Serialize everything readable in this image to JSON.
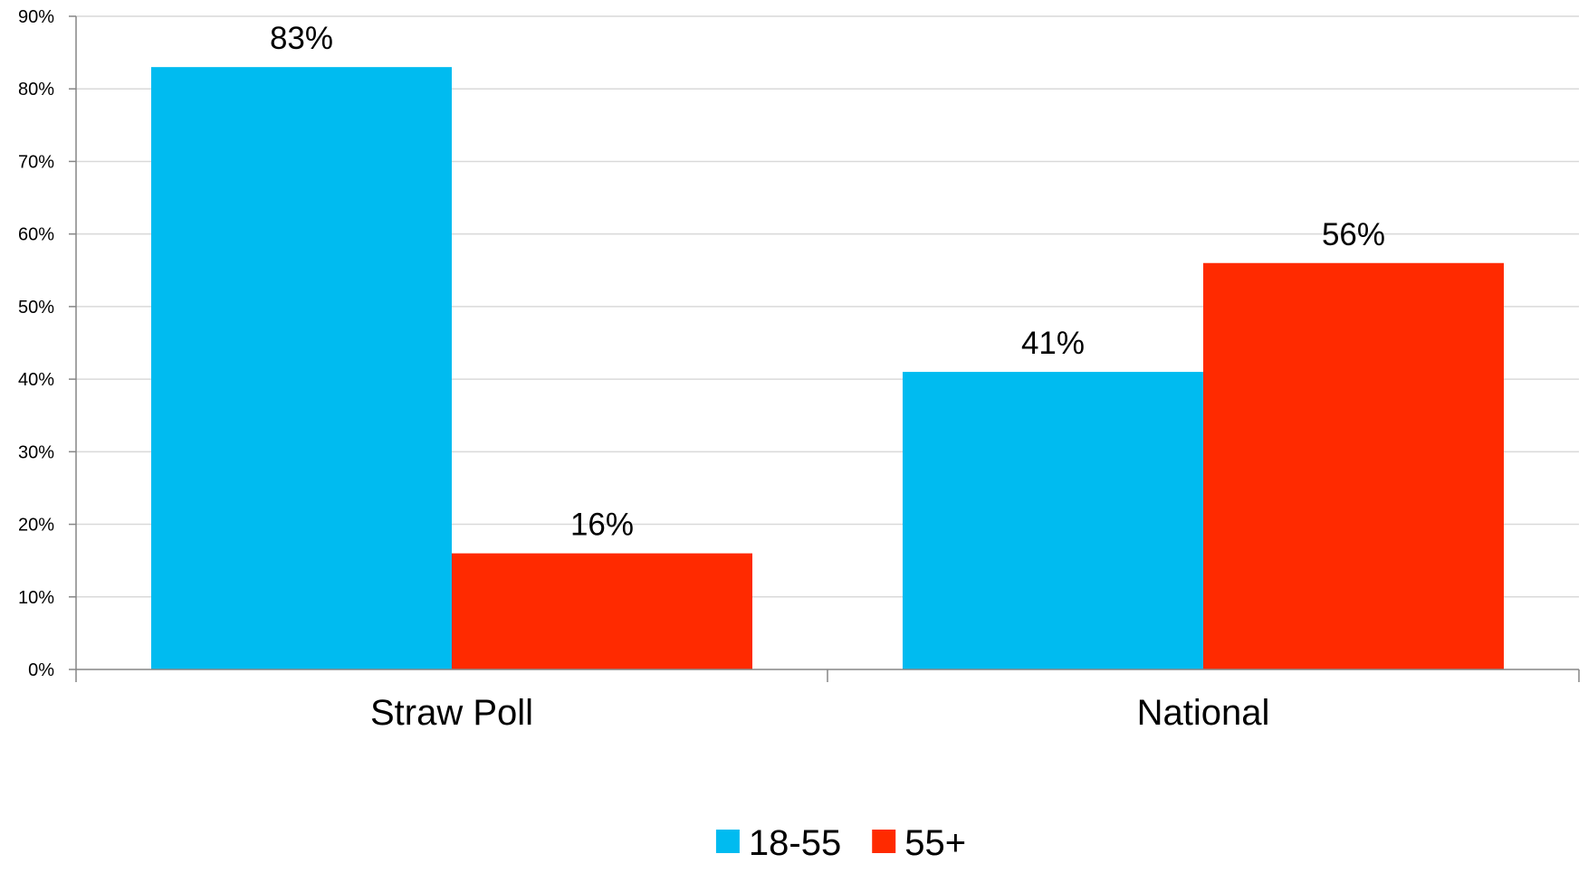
{
  "chart_data": {
    "type": "bar",
    "categories": [
      "Straw Poll",
      "National"
    ],
    "series": [
      {
        "name": "18-55",
        "values": [
          83,
          41
        ],
        "color": "#00BBF0"
      },
      {
        "name": "55+",
        "values": [
          16,
          56
        ],
        "color": "#FF2A00"
      }
    ],
    "data_labels": [
      [
        "83%",
        "41%"
      ],
      [
        "16%",
        "56%"
      ]
    ],
    "ylim": [
      0,
      90
    ],
    "yticks": [
      0,
      10,
      20,
      30,
      40,
      50,
      60,
      70,
      80,
      90
    ],
    "ytick_labels": [
      "0%",
      "10%",
      "20%",
      "30%",
      "40%",
      "50%",
      "60%",
      "70%",
      "80%",
      "90%"
    ],
    "grid": true,
    "legend_position": "bottom-center",
    "gridline_color": "#D9D9D9",
    "axis_color": "#868686"
  }
}
